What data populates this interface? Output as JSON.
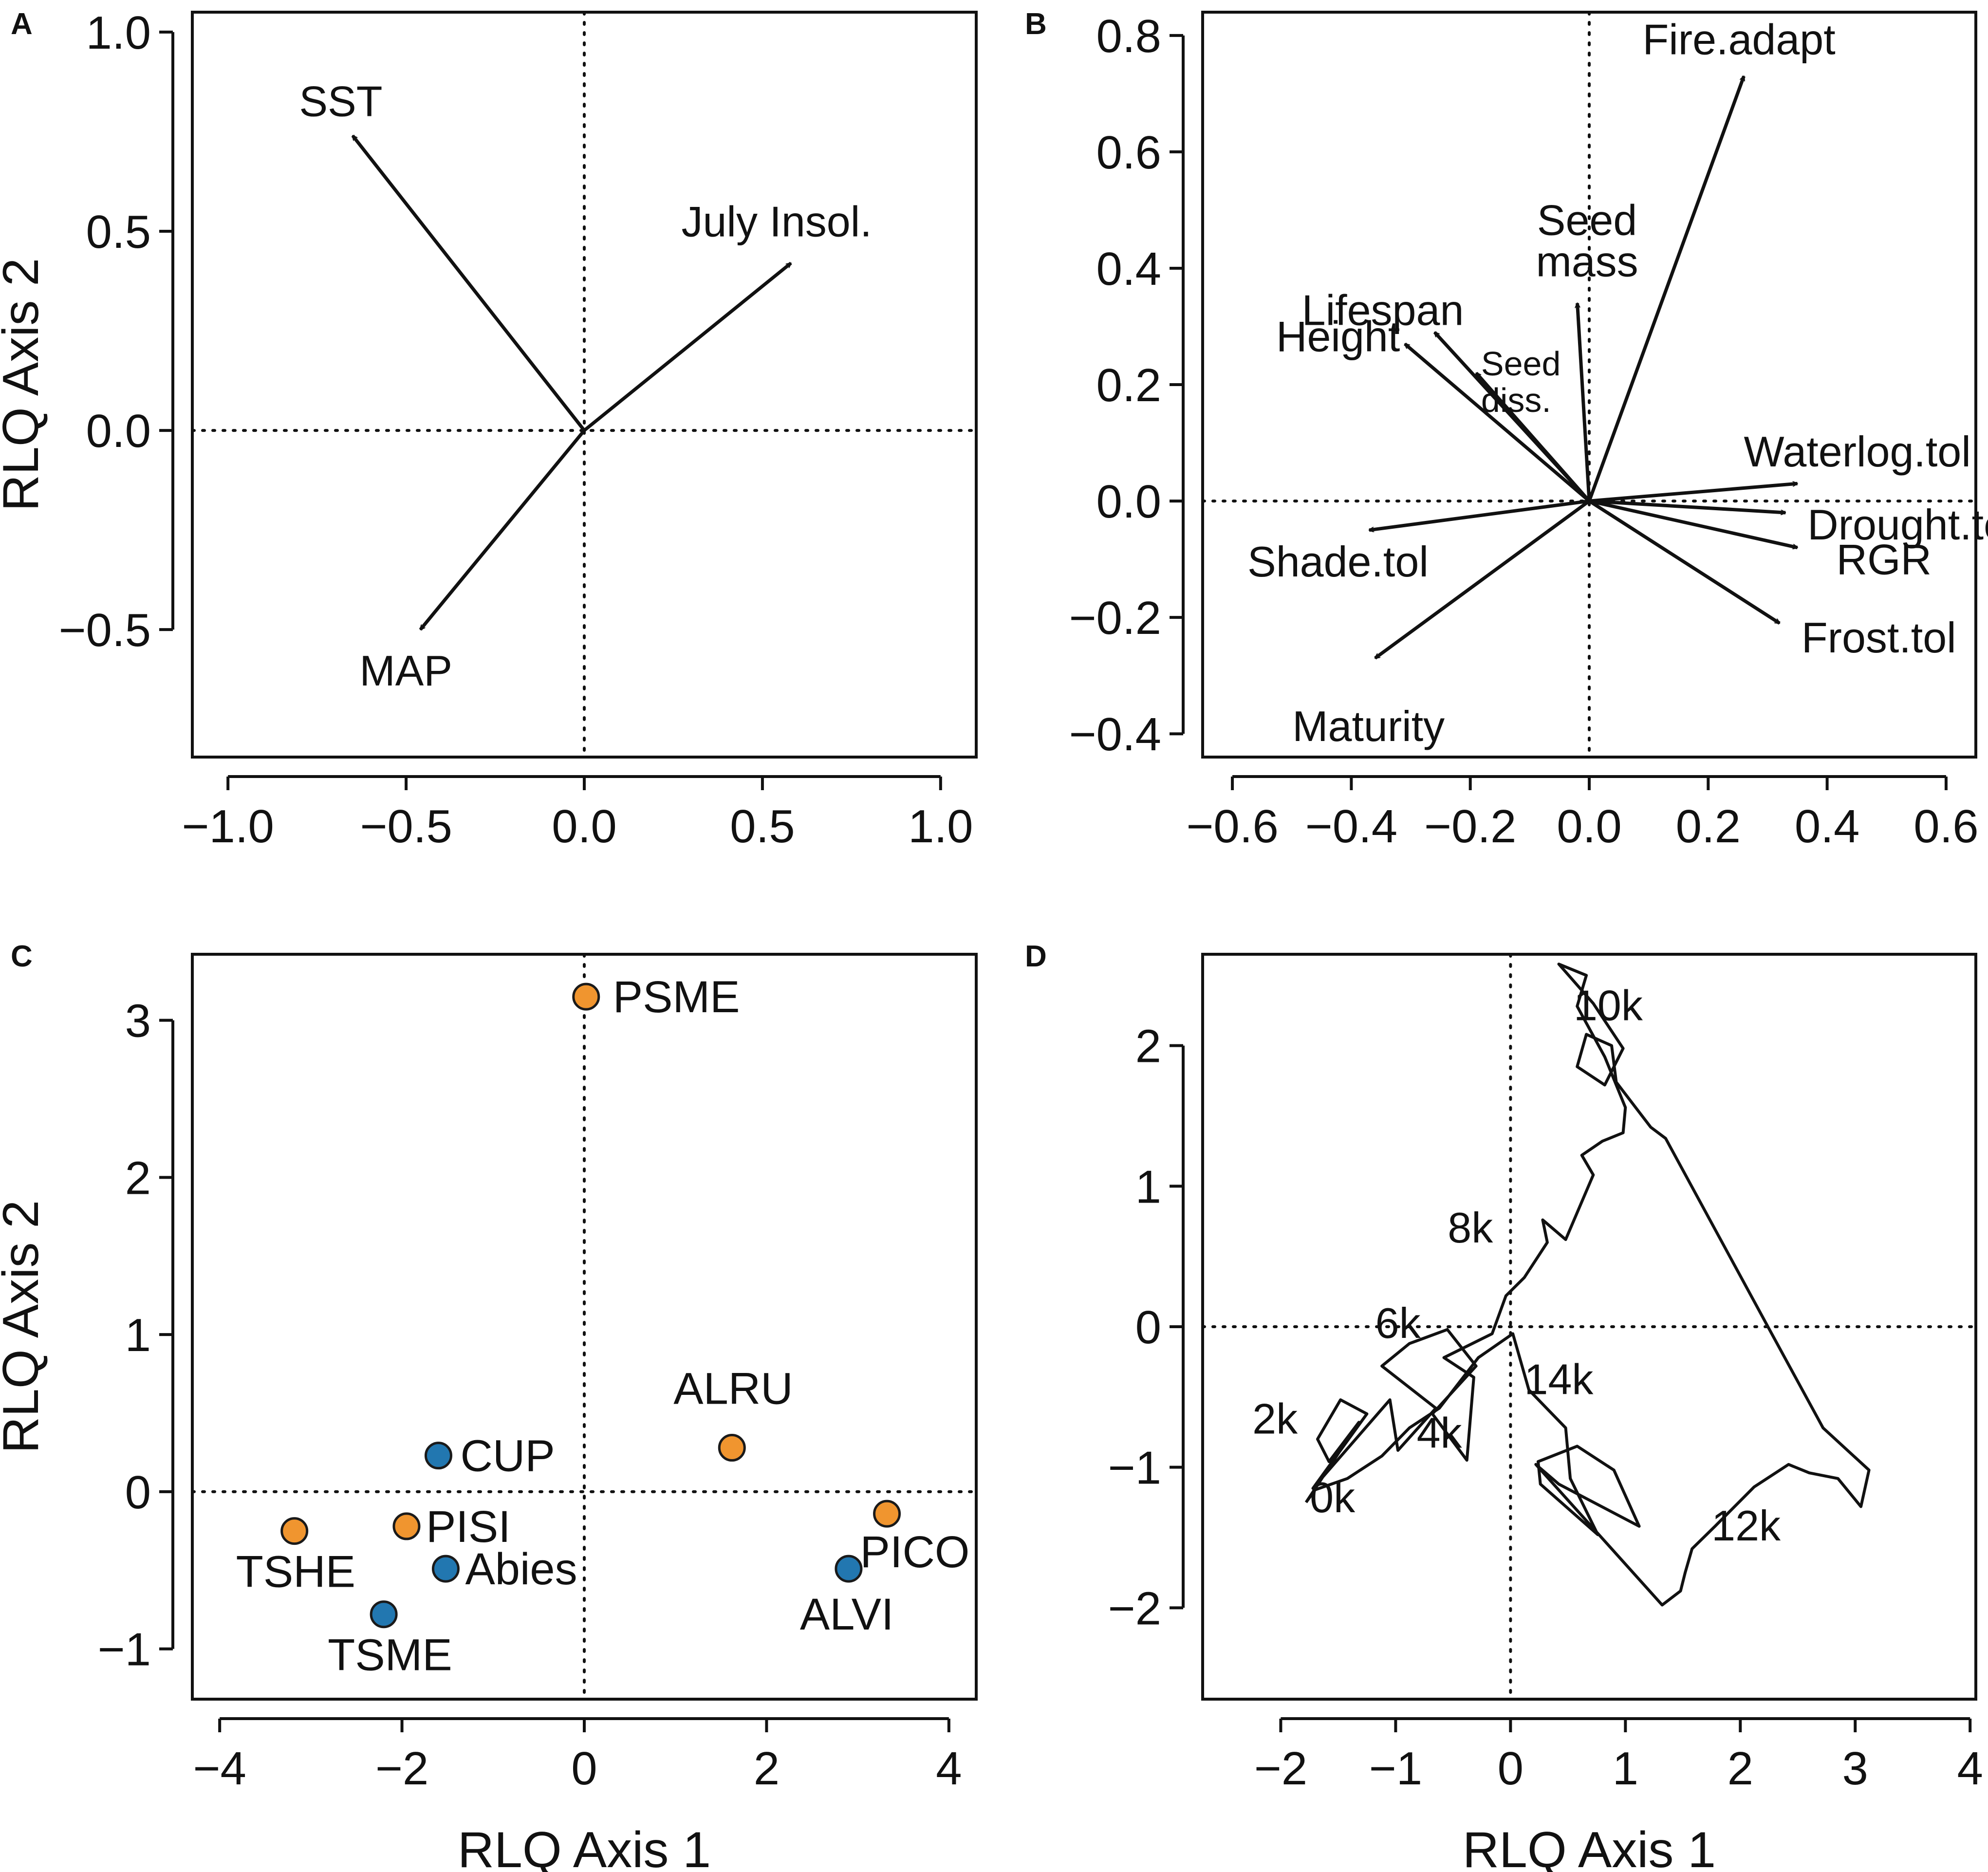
{
  "colors": {
    "ink": "#111111",
    "orange": "#F0952F",
    "blue": "#2277B0"
  },
  "chart_data": [
    {
      "panel": "A",
      "type": "biplot-vectors",
      "title": "",
      "xlabel": "",
      "ylabel": "RLQ Axis 2",
      "xlim": [
        -1.1,
        1.1
      ],
      "ylim": [
        -0.82,
        1.05
      ],
      "xticks": [
        -1.0,
        -0.5,
        0.0,
        0.5,
        1.0
      ],
      "xtick_labels": [
        "−1.0",
        "−0.5",
        "0.0",
        "0.5",
        "1.0"
      ],
      "yticks": [
        -0.5,
        0.0,
        0.5,
        1.0
      ],
      "ytick_labels": [
        "−0.5",
        "0.0",
        "0.5",
        "1.0"
      ],
      "vectors": [
        {
          "name": "SST",
          "x": -0.65,
          "y": 0.74,
          "anchor": "start"
        },
        {
          "name": "July Insol.",
          "x": 0.58,
          "y": 0.42,
          "anchor": "start"
        },
        {
          "name": "MAP",
          "x": -0.46,
          "y": -0.5,
          "anchor": "start"
        }
      ]
    },
    {
      "panel": "B",
      "type": "biplot-vectors",
      "title": "",
      "xlabel": "",
      "ylabel": "",
      "xlim": [
        -0.65,
        0.65
      ],
      "ylim": [
        -0.44,
        0.84
      ],
      "xticks": [
        -0.6,
        -0.4,
        -0.2,
        0.0,
        0.2,
        0.4,
        0.6
      ],
      "xtick_labels": [
        "−0.6",
        "−0.4",
        "−0.2",
        "0.0",
        "0.2",
        "0.4",
        "0.6"
      ],
      "yticks": [
        -0.4,
        -0.2,
        0.0,
        0.2,
        0.4,
        0.6,
        0.8
      ],
      "ytick_labels": [
        "−0.4",
        "−0.2",
        "0.0",
        "0.2",
        "0.4",
        "0.6",
        "0.8"
      ],
      "vectors": [
        {
          "name": "Fire.adapt",
          "x": 0.26,
          "y": 0.73,
          "anchor": "middle"
        },
        {
          "name": "Seed mass",
          "line1": "Seed",
          "line2": "mass",
          "x": -0.02,
          "y": 0.34,
          "anchor": "middle"
        },
        {
          "name": "Lifespan",
          "x": -0.26,
          "y": 0.29,
          "anchor": "end"
        },
        {
          "name": "Seed diss.",
          "line1": "Seed",
          "line2": "diss.",
          "x": -0.19,
          "y": 0.22,
          "anchor": "start"
        },
        {
          "name": "Height",
          "x": -0.31,
          "y": 0.27,
          "anchor": "end"
        },
        {
          "name": "Waterlog.tol",
          "x": 0.35,
          "y": 0.03,
          "anchor": "start"
        },
        {
          "name": "Drought.tol",
          "x": 0.33,
          "y": -0.02,
          "anchor": "start"
        },
        {
          "name": "RGR",
          "x": 0.35,
          "y": -0.08,
          "anchor": "start"
        },
        {
          "name": "Frost.tol",
          "x": 0.32,
          "y": -0.21,
          "anchor": "start"
        },
        {
          "name": "Shade.tol",
          "x": -0.37,
          "y": -0.05,
          "anchor": "start"
        },
        {
          "name": "Maturity",
          "x": -0.36,
          "y": -0.27,
          "anchor": "start"
        }
      ]
    },
    {
      "panel": "C",
      "type": "scatter",
      "title": "",
      "xlabel": "RLQ Axis 1",
      "ylabel": "RLQ Axis 2",
      "xlim": [
        -4.3,
        4.3
      ],
      "ylim": [
        -1.32,
        3.42
      ],
      "xticks": [
        -4,
        -2,
        0,
        2,
        4
      ],
      "xtick_labels": [
        "−4",
        "−2",
        "0",
        "2",
        "4"
      ],
      "yticks": [
        -1,
        0,
        1,
        2,
        3
      ],
      "ytick_labels": [
        "−1",
        "0",
        "1",
        "2",
        "3"
      ],
      "series": [
        {
          "name": "orange",
          "color": "#F0952F",
          "points": [
            {
              "label": "PSME",
              "x": 0.02,
              "y": 3.15
            },
            {
              "label": "ALRU",
              "x": 1.62,
              "y": 0.28
            },
            {
              "label": "PICO",
              "x": 3.32,
              "y": -0.14
            },
            {
              "label": "PISI",
              "x": -1.95,
              "y": -0.22
            },
            {
              "label": "TSHE",
              "x": -3.18,
              "y": -0.25
            }
          ]
        },
        {
          "name": "blue",
          "color": "#2277B0",
          "points": [
            {
              "label": "CUP",
              "x": -1.6,
              "y": 0.23
            },
            {
              "label": "Abies",
              "x": -1.52,
              "y": -0.49
            },
            {
              "label": "ALVI",
              "x": 2.9,
              "y": -0.49
            },
            {
              "label": "TSME",
              "x": -2.2,
              "y": -0.78
            }
          ]
        }
      ]
    },
    {
      "panel": "D",
      "type": "line",
      "title": "",
      "xlabel": "RLQ Axis 1",
      "ylabel": "",
      "xlim": [
        -2.68,
        4.05
      ],
      "ylim": [
        -2.65,
        2.65
      ],
      "xticks": [
        -2,
        -1,
        0,
        1,
        2,
        3,
        4
      ],
      "xtick_labels": [
        "−2",
        "−1",
        "0",
        "1",
        "2",
        "3",
        "4"
      ],
      "yticks": [
        -2,
        -1,
        0,
        1,
        2
      ],
      "ytick_labels": [
        "−2",
        "−1",
        "0",
        "1",
        "2"
      ],
      "trajectory": [
        [
          -1.78,
          -1.25
        ],
        [
          -1.32,
          -0.68
        ],
        [
          -1.58,
          -0.96
        ],
        [
          -1.68,
          -0.8
        ],
        [
          -1.48,
          -0.52
        ],
        [
          -1.25,
          -0.62
        ],
        [
          -1.72,
          -1.15
        ],
        [
          -1.05,
          -0.52
        ],
        [
          -0.98,
          -0.88
        ],
        [
          -0.65,
          -0.58
        ],
        [
          -1.12,
          -0.28
        ],
        [
          -0.88,
          -0.12
        ],
        [
          -0.55,
          -0.02
        ],
        [
          -0.3,
          -0.28
        ],
        [
          -0.68,
          -0.62
        ],
        [
          -0.38,
          -0.95
        ],
        [
          -0.32,
          -0.36
        ],
        [
          -0.58,
          -0.22
        ],
        [
          -0.16,
          -0.05
        ],
        [
          -0.04,
          0.22
        ],
        [
          0.12,
          0.35
        ],
        [
          0.32,
          0.6
        ],
        [
          0.28,
          0.76
        ],
        [
          0.48,
          0.62
        ],
        [
          0.72,
          1.08
        ],
        [
          0.62,
          1.22
        ],
        [
          0.8,
          1.32
        ],
        [
          0.98,
          1.38
        ],
        [
          1.0,
          1.56
        ],
        [
          0.82,
          1.92
        ],
        [
          0.58,
          2.28
        ],
        [
          0.66,
          2.5
        ],
        [
          0.42,
          2.58
        ],
        [
          0.72,
          2.3
        ],
        [
          0.98,
          1.98
        ],
        [
          0.82,
          1.72
        ],
        [
          0.58,
          1.85
        ],
        [
          0.66,
          2.08
        ],
        [
          0.88,
          2.0
        ],
        [
          0.92,
          1.74
        ],
        [
          1.22,
          1.42
        ],
        [
          1.35,
          1.34
        ],
        [
          2.28,
          -0.06
        ],
        [
          2.72,
          -0.72
        ],
        [
          3.12,
          -1.02
        ],
        [
          3.05,
          -1.28
        ],
        [
          2.85,
          -1.08
        ],
        [
          2.6,
          -1.04
        ],
        [
          2.42,
          -0.98
        ],
        [
          2.12,
          -1.14
        ],
        [
          1.78,
          -1.42
        ],
        [
          1.58,
          -1.58
        ],
        [
          1.52,
          -1.75
        ],
        [
          1.48,
          -1.88
        ],
        [
          1.32,
          -1.98
        ],
        [
          0.22,
          -0.98
        ],
        [
          0.42,
          -1.12
        ],
        [
          1.12,
          -1.42
        ],
        [
          0.9,
          -1.02
        ],
        [
          0.58,
          -0.85
        ],
        [
          0.24,
          -0.96
        ],
        [
          0.26,
          -1.12
        ],
        [
          0.76,
          -1.48
        ],
        [
          0.52,
          -1.08
        ],
        [
          0.48,
          -0.72
        ],
        [
          0.16,
          -0.45
        ],
        [
          0.02,
          -0.05
        ],
        [
          -0.28,
          -0.22
        ],
        [
          -0.62,
          -0.58
        ],
        [
          -0.88,
          -0.72
        ],
        [
          -1.12,
          -0.92
        ],
        [
          -1.42,
          -1.08
        ],
        [
          -1.7,
          -1.16
        ],
        [
          -1.78,
          -1.25
        ]
      ],
      "age_labels": [
        {
          "label": "0k",
          "x": -1.55,
          "y": -1.32
        },
        {
          "label": "2k",
          "x": -2.05,
          "y": -0.76
        },
        {
          "label": "4k",
          "x": -0.62,
          "y": -0.86
        },
        {
          "label": "6k",
          "x": -0.98,
          "y": -0.08
        },
        {
          "label": "8k",
          "x": -0.35,
          "y": 0.6
        },
        {
          "label": "10k",
          "x": 0.85,
          "y": 2.18
        },
        {
          "label": "12k",
          "x": 2.05,
          "y": -1.52
        },
        {
          "label": "14k",
          "x": 0.42,
          "y": -0.48
        }
      ]
    }
  ]
}
